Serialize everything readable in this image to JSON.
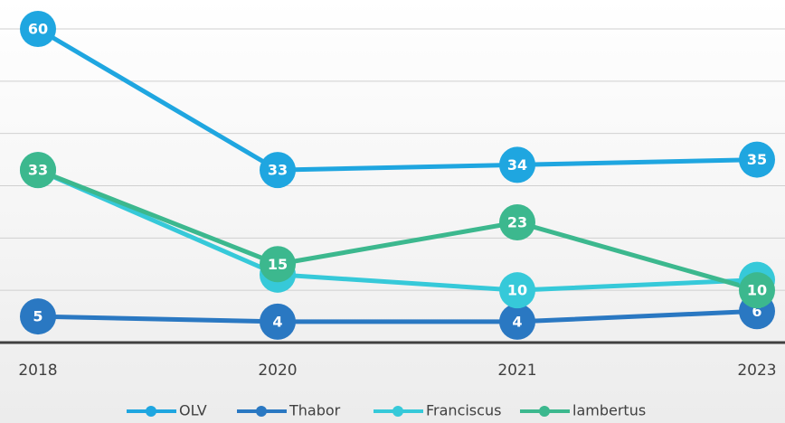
{
  "chart_data": {
    "type": "line",
    "categories": [
      "2018",
      "2020",
      "2021",
      "2023"
    ],
    "series": [
      {
        "name": "OLV",
        "color": "#1fa6e0",
        "values": [
          60,
          33,
          34,
          35
        ]
      },
      {
        "name": "Thabor",
        "color": "#2a78c2",
        "values": [
          5,
          4,
          4,
          6
        ]
      },
      {
        "name": "Franciscus",
        "color": "#36c9d9",
        "values": [
          33,
          13,
          10,
          12
        ]
      },
      {
        "name": "lambertus",
        "color": "#3cb88e",
        "values": [
          33,
          15,
          23,
          10
        ]
      }
    ],
    "ylim": [
      0,
      60
    ],
    "yticks": [
      0,
      10,
      20,
      30,
      40,
      50,
      60
    ],
    "grid": true,
    "legend": "bottom"
  }
}
